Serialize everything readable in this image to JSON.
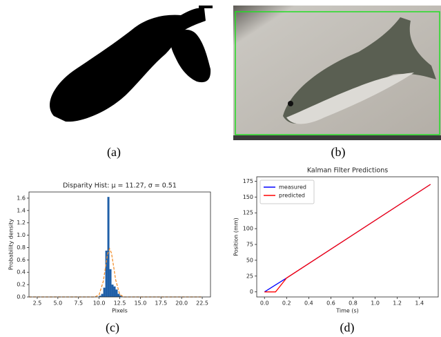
{
  "panel_labels": [
    "(a)",
    "(b)",
    "(c)",
    "(d)"
  ],
  "chart_data": [
    {
      "type": "histogram",
      "title": "Disparity Hist: μ =  11.27, σ =  0.51",
      "x_label": "Pixels",
      "y_label": "Probability density",
      "bins": [
        10.0,
        10.25,
        10.5,
        10.75,
        11.0,
        11.25,
        11.5,
        11.75,
        12.0,
        12.25,
        12.5,
        12.75
      ],
      "values": [
        0.02,
        0.05,
        0.15,
        0.75,
        1.62,
        0.45,
        0.2,
        0.17,
        0.12,
        0.05,
        0.02
      ],
      "color": "#1f5fa8",
      "fit": {
        "color": "#f28e2b",
        "x": [
          1.5,
          9.5,
          10.0,
          10.5,
          10.75,
          11.0,
          11.27,
          11.5,
          11.75,
          12.0,
          12.5,
          13.0,
          22.5
        ],
        "values": [
          0,
          0,
          0.035,
          0.25,
          0.46,
          0.68,
          0.78,
          0.71,
          0.5,
          0.28,
          0.04,
          0,
          0
        ]
      },
      "xlim": [
        1.5,
        23.5
      ],
      "xticks": [
        2.5,
        {
          "value": 5,
          "label": "5.0"
        },
        7.5,
        {
          "value": 10,
          "label": "10.0"
        },
        12.5,
        {
          "value": 15,
          "label": "15.0"
        },
        17.5,
        {
          "value": 20,
          "label": "20.0"
        },
        22.5
      ],
      "ylim": [
        0,
        1.7
      ],
      "yticks": [
        {
          "value": 0,
          "label": "0.0"
        },
        0.2,
        0.4,
        0.6,
        0.8,
        {
          "value": 1,
          "label": "1.0"
        },
        1.2,
        1.4,
        1.6
      ]
    },
    {
      "type": "line",
      "title": "Kalman Filter Predictions",
      "x_label": "Time (s)",
      "y_label": "Position (mm)",
      "x": [
        0,
        0.1,
        0.2,
        1.5
      ],
      "series": [
        {
          "name": "measured",
          "color": "#0000ff",
          "values": [
            0,
            11,
            22,
            170
          ]
        },
        {
          "name": "predicted",
          "color": "#ff0000",
          "values": [
            0,
            0,
            22,
            170
          ]
        }
      ],
      "legend": "upper left",
      "xlim": [
        -0.07,
        1.57
      ],
      "xticks": [
        {
          "value": 0,
          "label": "0.0"
        },
        0.2,
        0.4,
        0.6,
        0.8,
        {
          "value": 1,
          "label": "1.0"
        },
        1.2,
        1.4
      ],
      "ylim": [
        -8,
        182
      ],
      "yticks": [
        0,
        25,
        50,
        75,
        100,
        125,
        150,
        175
      ]
    }
  ]
}
